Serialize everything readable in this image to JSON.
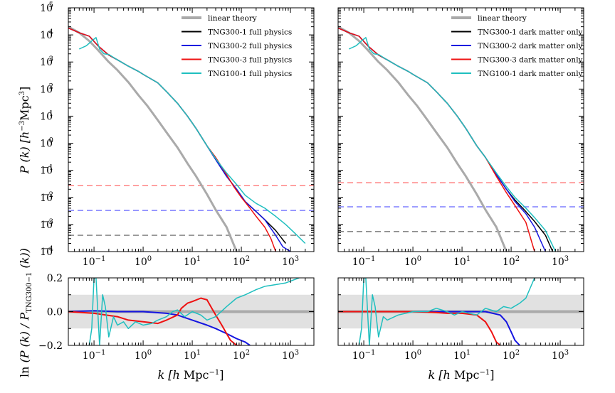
{
  "figure": {
    "ylabel_top": "P (k) [h⁻³Mpc³]",
    "ylabel_bottom": "ln (P (k) / P_TNG300−1 (k))",
    "xlabel": "k [h Mpc⁻¹]"
  },
  "chart_data": [
    {
      "type": "line",
      "panel": "top-left",
      "xscale": "log",
      "yscale": "log",
      "xlim": [
        0.03,
        3000
      ],
      "ylim": [
        0.0001,
        100000
      ],
      "x_ticks": [
        "10⁻¹",
        "10⁰",
        "10¹",
        "10²",
        "10³"
      ],
      "y_ticks": [
        "10⁻⁴",
        "10⁻³",
        "10⁻²",
        "10⁻¹",
        "10⁰",
        "10¹",
        "10²",
        "10³",
        "10⁴",
        "10⁵"
      ],
      "legend_position": "top-right",
      "series": [
        {
          "name": "linear theory",
          "color": "#aaaaaa",
          "width": 3,
          "x": [
            0.03,
            0.05,
            0.08,
            0.12,
            0.2,
            0.3,
            0.5,
            0.8,
            1.2,
            2,
            3,
            5,
            8,
            12,
            20,
            30,
            50,
            80
          ],
          "y": [
            20000,
            12000,
            6000,
            2800,
            1000,
            500,
            180,
            60,
            25,
            7,
            2.5,
            0.7,
            0.18,
            0.06,
            0.013,
            0.0035,
            0.0008,
            0.0001
          ]
        },
        {
          "name": "TNG300-1 full physics",
          "color": "#000000",
          "width": 1.5,
          "x": [
            0.03,
            0.05,
            0.08,
            0.12,
            0.2,
            0.3,
            0.5,
            0.8,
            1,
            2,
            3,
            5,
            8,
            12,
            20,
            30,
            50,
            80,
            120,
            200,
            300,
            500,
            800
          ],
          "y": [
            18000,
            12000,
            9000,
            4000,
            1800,
            1200,
            700,
            450,
            350,
            170,
            80,
            30,
            10,
            3.5,
            0.8,
            0.25,
            0.06,
            0.02,
            0.007,
            0.003,
            0.0015,
            0.0006,
            0.0002
          ]
        },
        {
          "name": "TNG300-2 full physics",
          "color": "#1515e0",
          "width": 1.5,
          "x": [
            0.03,
            0.05,
            0.08,
            0.12,
            0.2,
            0.3,
            0.5,
            0.8,
            1,
            2,
            3,
            5,
            8,
            12,
            20,
            30,
            50,
            80,
            120,
            200,
            300,
            500,
            700,
            1000
          ],
          "y": [
            18000,
            12000,
            9000,
            4000,
            1800,
            1200,
            700,
            450,
            350,
            170,
            80,
            30,
            10,
            3.5,
            0.8,
            0.25,
            0.06,
            0.02,
            0.007,
            0.003,
            0.0015,
            0.0004,
            0.00015,
            0.0001
          ]
        },
        {
          "name": "TNG300-3 full physics",
          "color": "#ee1111",
          "width": 1.5,
          "x": [
            0.03,
            0.05,
            0.08,
            0.12,
            0.2,
            0.3,
            0.5,
            0.8,
            1,
            2,
            3,
            5,
            8,
            12,
            20,
            30,
            50,
            70,
            100,
            150,
            200,
            300,
            400,
            500
          ],
          "y": [
            18000,
            12000,
            9000,
            4000,
            1800,
            1200,
            700,
            450,
            350,
            170,
            80,
            30,
            10,
            3.5,
            0.8,
            0.3,
            0.07,
            0.025,
            0.01,
            0.004,
            0.002,
            0.0008,
            0.0003,
            0.0001
          ]
        },
        {
          "name": "TNG100-1 full physics",
          "color": "#1fbfbf",
          "width": 1.5,
          "x": [
            0.05,
            0.07,
            0.09,
            0.11,
            0.13,
            0.16,
            0.2,
            0.3,
            0.5,
            0.8,
            1,
            2,
            3,
            5,
            8,
            12,
            20,
            30,
            50,
            80,
            120,
            200,
            300,
            500,
            800,
            1200,
            2000
          ],
          "y": [
            3000,
            4000,
            6000,
            8000,
            3000,
            2000,
            1900,
            1200,
            700,
            450,
            350,
            170,
            80,
            30,
            10,
            3.5,
            0.8,
            0.27,
            0.08,
            0.03,
            0.012,
            0.006,
            0.004,
            0.002,
            0.001,
            0.0005,
            0.0002
          ]
        }
      ],
      "hlines": [
        {
          "y": 0.027,
          "color": "#ff7a7a"
        },
        {
          "y": 0.0033,
          "color": "#7f7fff"
        },
        {
          "y": 0.0004,
          "color": "#777777"
        }
      ]
    },
    {
      "type": "line",
      "panel": "top-right",
      "xscale": "log",
      "yscale": "log",
      "xlim": [
        0.03,
        3000
      ],
      "ylim": [
        0.0001,
        100000
      ],
      "x_ticks": [
        "10⁻¹",
        "10⁰",
        "10¹",
        "10²",
        "10³"
      ],
      "legend_position": "top-right",
      "series": [
        {
          "name": "linear theory",
          "color": "#aaaaaa",
          "width": 3,
          "x": [
            0.03,
            0.05,
            0.08,
            0.12,
            0.2,
            0.3,
            0.5,
            0.8,
            1.2,
            2,
            3,
            5,
            8,
            12,
            20,
            30,
            50,
            80
          ],
          "y": [
            20000,
            12000,
            6000,
            2800,
            1000,
            500,
            180,
            60,
            25,
            7,
            2.5,
            0.7,
            0.18,
            0.06,
            0.013,
            0.0035,
            0.0008,
            0.0001
          ]
        },
        {
          "name": "TNG300-1 dark matter only",
          "color": "#000000",
          "width": 1.5,
          "x": [
            0.03,
            0.05,
            0.08,
            0.12,
            0.2,
            0.3,
            0.5,
            0.8,
            1,
            2,
            3,
            5,
            8,
            12,
            20,
            30,
            50,
            80,
            120,
            200,
            300,
            500,
            700
          ],
          "y": [
            18000,
            12000,
            9000,
            4000,
            1800,
            1200,
            700,
            450,
            350,
            170,
            80,
            30,
            10,
            3.5,
            0.8,
            0.3,
            0.07,
            0.02,
            0.008,
            0.003,
            0.0013,
            0.0004,
            0.0001
          ]
        },
        {
          "name": "TNG300-2 dark matter only",
          "color": "#1515e0",
          "width": 1.5,
          "x": [
            0.03,
            0.05,
            0.08,
            0.12,
            0.2,
            0.3,
            0.5,
            0.8,
            1,
            2,
            3,
            5,
            8,
            12,
            20,
            30,
            50,
            80,
            120,
            200,
            300,
            500
          ],
          "y": [
            18000,
            12000,
            9000,
            4000,
            1800,
            1200,
            700,
            450,
            350,
            170,
            80,
            30,
            10,
            3.5,
            0.8,
            0.3,
            0.07,
            0.02,
            0.007,
            0.0025,
            0.0008,
            0.0001
          ]
        },
        {
          "name": "TNG300-3 dark matter only",
          "color": "#ee1111",
          "width": 1.5,
          "x": [
            0.03,
            0.05,
            0.08,
            0.12,
            0.2,
            0.3,
            0.5,
            0.8,
            1,
            2,
            3,
            5,
            8,
            12,
            20,
            30,
            50,
            80,
            120,
            200,
            300
          ],
          "y": [
            18000,
            12000,
            9000,
            4000,
            1800,
            1200,
            700,
            450,
            350,
            170,
            80,
            30,
            10,
            3.5,
            0.8,
            0.3,
            0.06,
            0.015,
            0.005,
            0.0012,
            0.0001
          ]
        },
        {
          "name": "TNG100-1 dark matter only",
          "color": "#1fbfbf",
          "width": 1.5,
          "x": [
            0.05,
            0.07,
            0.09,
            0.11,
            0.13,
            0.16,
            0.2,
            0.3,
            0.5,
            0.8,
            1,
            2,
            3,
            5,
            8,
            12,
            20,
            30,
            50,
            80,
            120,
            200,
            300,
            500,
            800
          ],
          "y": [
            3000,
            4000,
            6000,
            8000,
            3000,
            2000,
            1900,
            1200,
            700,
            450,
            350,
            170,
            80,
            30,
            10,
            3.5,
            0.8,
            0.3,
            0.08,
            0.025,
            0.01,
            0.004,
            0.0018,
            0.0006,
            0.0001
          ]
        }
      ],
      "hlines": [
        {
          "y": 0.035,
          "color": "#ff7a7a"
        },
        {
          "y": 0.0045,
          "color": "#7f7fff"
        },
        {
          "y": 0.00055,
          "color": "#777777"
        }
      ]
    },
    {
      "type": "line",
      "panel": "bottom-left",
      "xscale": "log",
      "yscale": "linear",
      "xlim": [
        0.03,
        3000
      ],
      "ylim": [
        -0.2,
        0.2
      ],
      "x_ticks": [
        "10⁻¹",
        "10⁰",
        "10¹",
        "10²",
        "10³"
      ],
      "y_ticks": [
        "−0.2",
        "0.0",
        "0.2"
      ],
      "band": [
        -0.1,
        0.1
      ],
      "series": [
        {
          "name": "",
          "color": "#aaaaaa",
          "width": 4,
          "x": [
            0.03,
            3000
          ],
          "y": [
            0,
            0
          ]
        },
        {
          "name": "",
          "color": "#1515e0",
          "width": 2,
          "x": [
            0.03,
            0.1,
            0.3,
            1,
            3,
            5,
            10,
            20,
            30,
            50,
            80,
            120,
            150
          ],
          "y": [
            0.0,
            0.005,
            0.0,
            0.0,
            -0.01,
            -0.02,
            -0.05,
            -0.08,
            -0.1,
            -0.13,
            -0.16,
            -0.18,
            -0.2
          ]
        },
        {
          "name": "",
          "color": "#ee1111",
          "width": 2,
          "x": [
            0.03,
            0.1,
            0.3,
            0.5,
            1,
            2,
            3,
            5,
            6,
            8,
            10,
            15,
            20,
            25,
            30,
            40,
            50,
            60,
            80,
            100
          ],
          "y": [
            0.0,
            -0.01,
            -0.03,
            -0.05,
            -0.06,
            -0.07,
            -0.05,
            -0.02,
            0.02,
            0.05,
            0.06,
            0.08,
            0.07,
            0.02,
            -0.02,
            -0.08,
            -0.13,
            -0.17,
            -0.2,
            -0.2
          ]
        },
        {
          "name": "",
          "color": "#1fbfbf",
          "width": 1.5,
          "x": [
            0.08,
            0.09,
            0.1,
            0.11,
            0.13,
            0.15,
            0.17,
            0.2,
            0.25,
            0.3,
            0.4,
            0.5,
            0.7,
            1,
            1.5,
            2,
            3,
            4,
            5,
            7,
            10,
            15,
            20,
            30,
            50,
            80,
            120,
            200,
            300,
            500,
            800,
            1500
          ],
          "y": [
            -0.2,
            -0.1,
            0.2,
            0.2,
            -0.2,
            0.1,
            0.03,
            -0.15,
            -0.03,
            -0.08,
            -0.06,
            -0.1,
            -0.06,
            -0.08,
            -0.07,
            -0.05,
            -0.03,
            0.0,
            0.01,
            -0.03,
            0.0,
            -0.02,
            -0.05,
            -0.03,
            0.03,
            0.08,
            0.1,
            0.13,
            0.15,
            0.16,
            0.17,
            0.2
          ]
        }
      ]
    },
    {
      "type": "line",
      "panel": "bottom-right",
      "xscale": "log",
      "yscale": "linear",
      "xlim": [
        0.03,
        3000
      ],
      "ylim": [
        -0.2,
        0.2
      ],
      "x_ticks": [
        "10⁻¹",
        "10⁰",
        "10¹",
        "10²",
        "10³"
      ],
      "band": [
        -0.1,
        0.1
      ],
      "series": [
        {
          "name": "",
          "color": "#aaaaaa",
          "width": 4,
          "x": [
            0.03,
            3000
          ],
          "y": [
            0,
            0
          ]
        },
        {
          "name": "",
          "color": "#1515e0",
          "width": 2,
          "x": [
            0.03,
            1,
            3,
            10,
            30,
            60,
            80,
            100,
            120,
            150
          ],
          "y": [
            0.0,
            0.0,
            0.0,
            0.0,
            0.0,
            -0.02,
            -0.06,
            -0.12,
            -0.17,
            -0.2
          ]
        },
        {
          "name": "",
          "color": "#ee1111",
          "width": 2,
          "x": [
            0.03,
            0.3,
            1,
            3,
            5,
            10,
            20,
            30,
            40,
            50,
            60
          ],
          "y": [
            0.0,
            0.0,
            0.0,
            -0.005,
            -0.01,
            -0.01,
            -0.02,
            -0.06,
            -0.12,
            -0.18,
            -0.2
          ]
        },
        {
          "name": "",
          "color": "#1fbfbf",
          "width": 1.5,
          "x": [
            0.08,
            0.09,
            0.1,
            0.11,
            0.13,
            0.15,
            0.17,
            0.2,
            0.25,
            0.3,
            0.5,
            1,
            2,
            3,
            5,
            7,
            10,
            20,
            30,
            50,
            70,
            100,
            150,
            200,
            300
          ],
          "y": [
            -0.2,
            -0.1,
            0.2,
            0.2,
            -0.2,
            0.1,
            0.03,
            -0.15,
            -0.03,
            -0.05,
            -0.02,
            0.0,
            0.0,
            0.02,
            0.0,
            -0.02,
            0.0,
            -0.02,
            0.02,
            0.0,
            0.03,
            0.02,
            0.05,
            0.08,
            0.2
          ]
        }
      ]
    }
  ]
}
